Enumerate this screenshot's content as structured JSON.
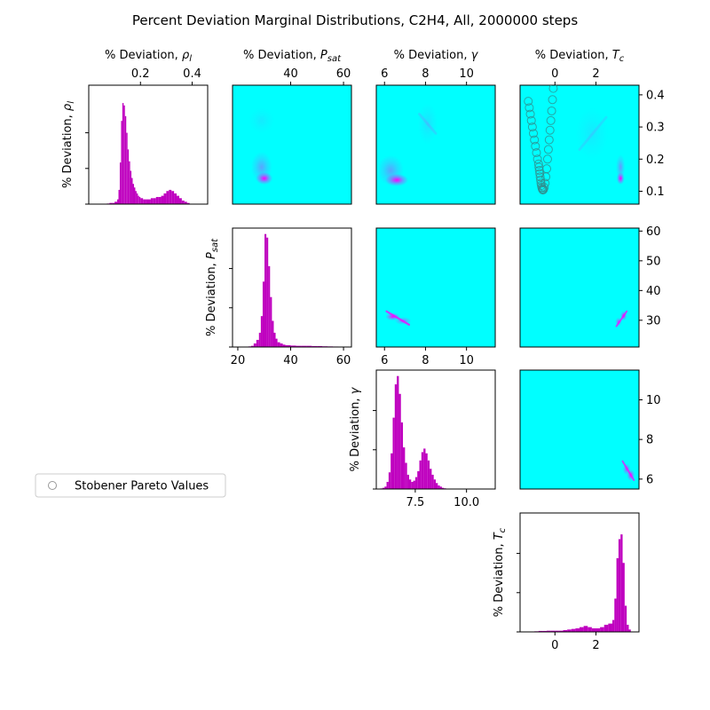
{
  "figure": {
    "title": "Percent Deviation Marginal Distributions, C2H4, All, 2000000 steps",
    "legend_label": "Stobener Pareto Values",
    "legend_placement": "center-left"
  },
  "colors": {
    "histogram": "#bf00bf",
    "background_2d": "#00ffff",
    "density_peak": "#ff00ff",
    "pareto_marker": "#2f8f8f"
  },
  "chart_data": [
    {
      "type": "bar",
      "name": "hist-rho",
      "ylabel": "% Deviation, ρl",
      "xlabel_top": "% Deviation, ρl",
      "xlim": [
        0.0,
        0.46
      ],
      "ylim": [
        0,
        100
      ],
      "xticks": [
        "0.2",
        "0.4"
      ],
      "xtick_values": [
        0.2,
        0.4
      ],
      "bins_x": [
        0.07,
        0.08,
        0.09,
        0.1,
        0.11,
        0.115,
        0.12,
        0.125,
        0.13,
        0.135,
        0.14,
        0.145,
        0.15,
        0.155,
        0.16,
        0.165,
        0.17,
        0.175,
        0.18,
        0.185,
        0.19,
        0.195,
        0.2,
        0.21,
        0.22,
        0.23,
        0.24,
        0.25,
        0.26,
        0.27,
        0.28,
        0.29,
        0.3,
        0.31,
        0.32,
        0.33,
        0.34,
        0.35,
        0.36,
        0.37,
        0.38
      ],
      "bins_y": [
        0.5,
        1,
        1,
        2,
        4,
        12,
        35,
        70,
        85,
        83,
        74,
        60,
        46,
        36,
        28,
        22,
        17,
        14,
        11,
        9,
        7,
        6,
        5,
        4,
        4,
        4,
        5,
        5,
        6,
        6,
        7,
        9,
        11,
        12,
        11,
        9,
        7,
        5,
        3,
        2,
        1
      ]
    },
    {
      "type": "bar",
      "name": "hist-psat",
      "ylabel": "% Deviation, Psat",
      "xlabel_top": "% Deviation, Psat",
      "xlim": [
        18,
        63
      ],
      "ylim": [
        0,
        100
      ],
      "xticks": [
        "20",
        "40",
        "60"
      ],
      "xtick_values": [
        20,
        40,
        60
      ],
      "bins_x": [
        24,
        25,
        26,
        27,
        28,
        28.7,
        29.4,
        30.1,
        30.8,
        31.5,
        32.2,
        32.9,
        33.6,
        34.3,
        35,
        36,
        37,
        38,
        40,
        42,
        44,
        46,
        48,
        50,
        52,
        54,
        56
      ],
      "bins_y": [
        0.5,
        1,
        3,
        6,
        12,
        26,
        55,
        95,
        92,
        68,
        42,
        22,
        12,
        7,
        4,
        3,
        2,
        1.5,
        1.2,
        1,
        1,
        1,
        0.8,
        0.8,
        0.6,
        0.5,
        0.4
      ]
    },
    {
      "type": "bar",
      "name": "hist-gamma",
      "ylabel": "% Deviation, γ",
      "xlabel_top": "% Deviation, γ",
      "xlim": [
        5.6,
        11.4
      ],
      "ylim": [
        0,
        100
      ],
      "xticks": [
        "7.5",
        "10.0"
      ],
      "xtick_values": [
        7.5,
        10.0
      ],
      "xticks_top": [
        "6",
        "8",
        "10"
      ],
      "xtick_top_values": [
        6,
        8,
        10
      ],
      "bins_x": [
        5.8,
        5.9,
        6.0,
        6.1,
        6.2,
        6.3,
        6.4,
        6.5,
        6.6,
        6.7,
        6.8,
        6.9,
        7.0,
        7.1,
        7.2,
        7.3,
        7.4,
        7.5,
        7.6,
        7.7,
        7.8,
        7.9,
        8.0,
        8.1,
        8.2,
        8.3,
        8.4,
        8.5,
        8.6,
        8.7,
        8.8,
        8.9,
        9.0
      ],
      "bins_y": [
        0.5,
        1,
        2,
        6,
        14,
        30,
        60,
        88,
        95,
        80,
        56,
        35,
        22,
        12,
        8,
        6,
        7,
        10,
        15,
        24,
        31,
        34,
        30,
        24,
        17,
        12,
        8,
        5,
        3,
        2,
        1,
        0.6,
        0.3
      ]
    },
    {
      "type": "bar",
      "name": "hist-tc",
      "ylabel": "% Deviation, Tc",
      "xlabel_top": "% Deviation, Tc",
      "xlim": [
        -1.7,
        4.1
      ],
      "ylim": [
        0,
        100
      ],
      "xticks": [
        "0",
        "2"
      ],
      "xtick_values": [
        0,
        2
      ],
      "bins_x": [
        -1.0,
        -0.8,
        -0.6,
        -0.4,
        -0.2,
        0.0,
        0.2,
        0.4,
        0.6,
        0.8,
        1.0,
        1.2,
        1.4,
        1.6,
        1.8,
        2.0,
        2.2,
        2.4,
        2.6,
        2.8,
        2.9,
        3.0,
        3.1,
        3.2,
        3.3,
        3.4,
        3.5,
        3.6
      ],
      "bins_y": [
        0.5,
        0.8,
        0.8,
        1,
        1,
        1,
        1,
        1.5,
        2,
        2.5,
        3,
        4,
        5,
        4,
        3,
        3,
        4,
        6,
        7,
        10,
        28,
        62,
        78,
        82,
        58,
        22,
        6,
        2
      ]
    },
    {
      "type": "heatmap",
      "name": "kde-psat-rho",
      "xlim": [
        18,
        63
      ],
      "ylim": [
        0.06,
        0.43
      ],
      "xticks_top": [
        "40",
        "60"
      ],
      "xtick_top_values": [
        40,
        60
      ],
      "blobs": [
        {
          "x": 30,
          "y": 0.14,
          "sx": 2.0,
          "sy": 0.012,
          "peak": 1.0
        },
        {
          "x": 29,
          "y": 0.175,
          "sx": 2.5,
          "sy": 0.03,
          "peak": 0.35
        },
        {
          "x": 29,
          "y": 0.32,
          "sx": 3.0,
          "sy": 0.025,
          "peak": 0.08
        }
      ]
    },
    {
      "type": "heatmap",
      "name": "kde-gamma-rho",
      "xlim": [
        5.6,
        11.4
      ],
      "ylim": [
        0.06,
        0.43
      ],
      "blobs": [
        {
          "x": 6.6,
          "y": 0.135,
          "sx": 0.35,
          "sy": 0.012,
          "peak": 1.0
        },
        {
          "x": 6.3,
          "y": 0.165,
          "sx": 0.4,
          "sy": 0.03,
          "peak": 0.35
        },
        {
          "x": 8.1,
          "y": 0.31,
          "sx": 0.3,
          "sy": 0.04,
          "peak": 0.12
        }
      ]
    },
    {
      "type": "heatmap",
      "name": "kde-tc-rho",
      "xlim": [
        -1.7,
        4.1
      ],
      "ylim": [
        0.06,
        0.43
      ],
      "yside": "right",
      "yticks": [
        "0.1",
        "0.2",
        "0.3",
        "0.4"
      ],
      "ytick_values": [
        0.1,
        0.2,
        0.3,
        0.4
      ],
      "blobs": [
        {
          "x": 3.2,
          "y": 0.14,
          "sx": 0.12,
          "sy": 0.012,
          "peak": 1.0
        },
        {
          "x": 3.2,
          "y": 0.175,
          "sx": 0.14,
          "sy": 0.025,
          "peak": 0.4
        },
        {
          "x": 1.8,
          "y": 0.28,
          "sx": 0.5,
          "sy": 0.05,
          "peak": 0.08
        }
      ]
    },
    {
      "type": "heatmap",
      "name": "kde-gamma-psat",
      "xlim": [
        5.6,
        11.4
      ],
      "ylim": [
        21,
        61
      ],
      "blobs": [
        {
          "x": 6.4,
          "y": 31.2,
          "sx": 0.22,
          "sy": 0.8,
          "peak": 1.0
        },
        {
          "x": 6.9,
          "y": 29.8,
          "sx": 0.25,
          "sy": 0.8,
          "peak": 0.6
        }
      ]
    },
    {
      "type": "heatmap",
      "name": "kde-tc-psat",
      "xlim": [
        -1.7,
        4.1
      ],
      "ylim": [
        21,
        61
      ],
      "yside": "right",
      "yticks": [
        "30",
        "40",
        "50",
        "60"
      ],
      "ytick_values": [
        30,
        40,
        50,
        60
      ],
      "blobs": [
        {
          "x": 3.35,
          "y": 31.5,
          "sx": 0.1,
          "sy": 1.0,
          "peak": 0.9
        },
        {
          "x": 3.1,
          "y": 29.5,
          "sx": 0.1,
          "sy": 0.9,
          "peak": 0.7
        }
      ]
    },
    {
      "type": "heatmap",
      "name": "kde-tc-gamma",
      "xlim": [
        -1.7,
        4.1
      ],
      "ylim": [
        5.5,
        11.5
      ],
      "yside": "right",
      "yticks": [
        "6",
        "8",
        "10"
      ],
      "ytick_values": [
        6,
        8,
        10
      ],
      "blobs": [
        {
          "x": 3.7,
          "y": 6.2,
          "sx": 0.12,
          "sy": 0.18,
          "peak": 0.9
        },
        {
          "x": 3.5,
          "y": 6.5,
          "sx": 0.12,
          "sy": 0.18,
          "peak": 0.7
        }
      ]
    },
    {
      "type": "scatter",
      "name": "pareto-tc-rho",
      "series": [
        {
          "name": "Stobener Pareto Values",
          "x": [
            -1.3,
            -1.25,
            -1.2,
            -1.15,
            -1.1,
            -1.05,
            -1.0,
            -0.95,
            -0.9,
            -0.85,
            -0.8,
            -0.78,
            -0.76,
            -0.74,
            -0.72,
            -0.7,
            -0.68,
            -0.66,
            -0.64,
            -0.62,
            -0.6,
            -0.58,
            -0.56,
            -0.52,
            -0.48,
            -0.44,
            -0.4,
            -0.36,
            -0.32,
            -0.28,
            -0.24,
            -0.2,
            -0.16,
            -0.12,
            -0.08
          ],
          "y": [
            0.38,
            0.36,
            0.34,
            0.32,
            0.3,
            0.28,
            0.26,
            0.24,
            0.22,
            0.2,
            0.185,
            0.175,
            0.165,
            0.155,
            0.145,
            0.135,
            0.125,
            0.118,
            0.112,
            0.108,
            0.105,
            0.104,
            0.106,
            0.112,
            0.125,
            0.145,
            0.17,
            0.2,
            0.23,
            0.26,
            0.29,
            0.32,
            0.35,
            0.385,
            0.42
          ]
        }
      ]
    }
  ]
}
